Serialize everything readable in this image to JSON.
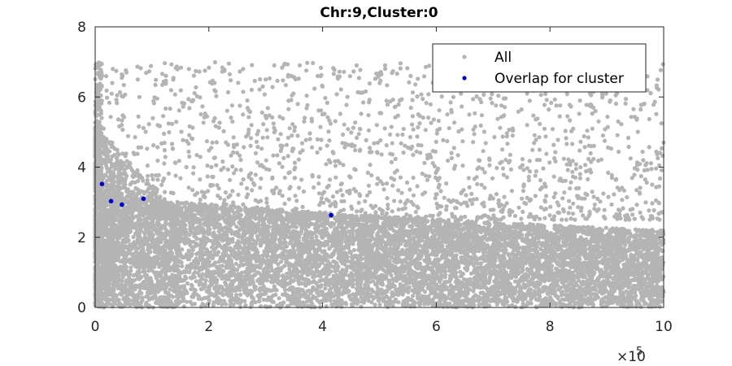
{
  "chart_data": {
    "type": "scatter",
    "title": "Chr:9,Cluster:0",
    "xlabel": "",
    "ylabel": "",
    "xlim": [
      0,
      1000000
    ],
    "ylim": [
      0,
      8
    ],
    "x_ticks": [
      0,
      200000,
      400000,
      600000,
      800000,
      1000000
    ],
    "x_tick_labels": [
      "0",
      "2",
      "4",
      "6",
      "8",
      "10"
    ],
    "x_exponent_label": "×10",
    "x_exponent_power": "5",
    "y_ticks": [
      0,
      2,
      4,
      6,
      8
    ],
    "y_tick_labels": [
      "0",
      "2",
      "4",
      "6",
      "8"
    ],
    "grid": false,
    "legend": {
      "placement": "top-right",
      "entries": [
        "All",
        "Overlap for cluster"
      ]
    },
    "series": [
      {
        "name": "All",
        "color": "#b4b4b4",
        "description_of_density": "dense cloud of ~thousands of points from 0 to 1e6; values mostly 0–3, spread up to ~7, higher near x=0",
        "values_sample": [
          [
            2000,
            6.9
          ],
          [
            5000,
            5.8
          ],
          [
            10000,
            6.6
          ],
          [
            15000,
            5.1
          ],
          [
            30000,
            6.4
          ],
          [
            55000,
            6.7
          ],
          [
            75000,
            6.5
          ],
          [
            110000,
            5.2
          ],
          [
            165000,
            6.8
          ],
          [
            210000,
            6.4
          ],
          [
            260000,
            5.5
          ],
          [
            300000,
            6.5
          ],
          [
            315000,
            6.9
          ],
          [
            345000,
            6.6
          ],
          [
            360000,
            6.9
          ],
          [
            400000,
            6.3
          ],
          [
            460000,
            6.9
          ],
          [
            510000,
            6.9
          ],
          [
            555000,
            6.6
          ],
          [
            600000,
            6.4
          ],
          [
            660000,
            6.7
          ],
          [
            720000,
            6.5
          ],
          [
            820000,
            6.7
          ],
          [
            880000,
            5.6
          ],
          [
            965000,
            5.8
          ],
          [
            1000000,
            4.7
          ]
        ]
      },
      {
        "name": "Overlap for cluster",
        "color": "#0000cc",
        "points": [
          [
            12000,
            3.52
          ],
          [
            28000,
            3.03
          ],
          [
            47000,
            2.93
          ],
          [
            85000,
            3.1
          ],
          [
            415000,
            2.63
          ]
        ]
      }
    ]
  }
}
